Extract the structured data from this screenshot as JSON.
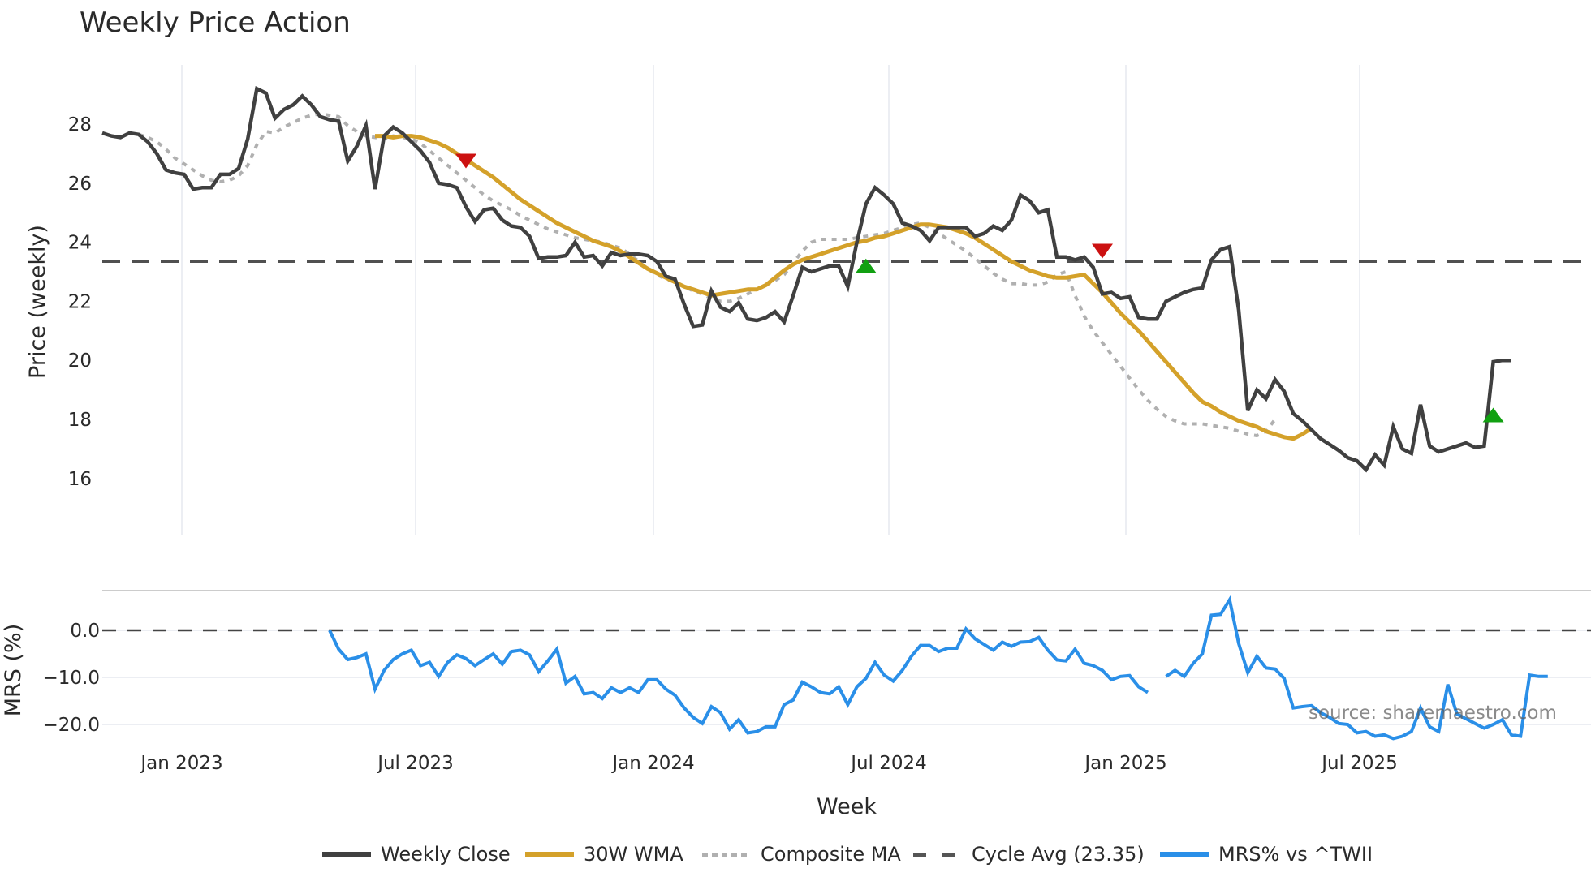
{
  "title": "Weekly Price Action",
  "source_text": "source: sharemaestro.com",
  "legend": [
    {
      "label": "Weekly Close",
      "color": "#404040",
      "style": "solid"
    },
    {
      "label": "30W WMA",
      "color": "#d4a12a",
      "style": "solid"
    },
    {
      "label": "Composite MA",
      "color": "#b0b0b0",
      "style": "dotted"
    },
    {
      "label": "Cycle Avg (23.35)",
      "color": "#555555",
      "style": "dashed"
    },
    {
      "label": "MRS% vs ^TWII",
      "color": "#2a8fe8",
      "style": "solid"
    }
  ],
  "chart_data": [
    {
      "type": "line",
      "title": "Weekly Price Action",
      "xlabel": "Week",
      "ylabel": "Price (weekly)",
      "ylim": [
        15.8,
        29.6
      ],
      "yticks": [
        16,
        18,
        20,
        22,
        24,
        26,
        28
      ],
      "xticks": [
        "Jan 2023",
        "Jul 2023",
        "Jan 2024",
        "Jul 2024",
        "Jan 2025",
        "Jul 2025"
      ],
      "grid": "vertical",
      "legend_position": "bottom",
      "cycle_avg": 23.35,
      "series": [
        {
          "name": "Weekly Close",
          "color": "#404040",
          "values": [
            27.7,
            27.6,
            27.55,
            27.7,
            27.65,
            27.4,
            27.0,
            26.45,
            26.35,
            26.3,
            25.8,
            25.85,
            25.85,
            26.3,
            26.3,
            26.5,
            27.5,
            29.2,
            29.05,
            28.2,
            28.5,
            28.65,
            28.95,
            28.65,
            28.25,
            28.15,
            28.1,
            26.75,
            27.25,
            27.95,
            25.8,
            27.6,
            27.9,
            27.7,
            27.4,
            27.1,
            26.7,
            26.0,
            25.95,
            25.85,
            25.2,
            24.7,
            25.1,
            25.15,
            24.75,
            24.55,
            24.5,
            24.2,
            23.45,
            23.5,
            23.5,
            23.55,
            24.0,
            23.5,
            23.55,
            23.2,
            23.65,
            23.55,
            23.6,
            23.6,
            23.55,
            23.35,
            22.85,
            22.75,
            21.9,
            21.15,
            21.2,
            22.35,
            21.8,
            21.65,
            21.95,
            21.4,
            21.35,
            21.45,
            21.65,
            21.3,
            22.2,
            23.15,
            23.0,
            23.1,
            23.2,
            23.2,
            22.5,
            24.0,
            25.3,
            25.85,
            25.6,
            25.3,
            24.65,
            24.55,
            24.4,
            24.05,
            24.5,
            24.5,
            24.5,
            24.5,
            24.2,
            24.3,
            24.55,
            24.4,
            24.75,
            25.6,
            25.4,
            25.0,
            25.1,
            23.5,
            23.5,
            23.4,
            23.5,
            23.15,
            22.25,
            22.3,
            22.1,
            22.15,
            21.45,
            21.4,
            21.4,
            22.0,
            22.15,
            22.3,
            22.4,
            22.45,
            23.4,
            23.75,
            23.85,
            21.7,
            18.3,
            19.0,
            18.7,
            19.35,
            18.95,
            18.2,
            17.95,
            17.65,
            17.35,
            17.15,
            16.95,
            16.7,
            16.6,
            16.3,
            16.8,
            16.45,
            17.75,
            17.0,
            16.85,
            18.5,
            17.1,
            16.9,
            17.0,
            17.1,
            17.2,
            17.05,
            17.1,
            19.95,
            20.0,
            20.0
          ]
        },
        {
          "name": "30W WMA",
          "color": "#d4a12a",
          "start_index": 30,
          "values": [
            27.6,
            27.6,
            27.55,
            27.6,
            27.6,
            27.55,
            27.45,
            27.35,
            27.2,
            27.0,
            26.8,
            26.6,
            26.4,
            26.2,
            25.95,
            25.7,
            25.45,
            25.25,
            25.05,
            24.85,
            24.65,
            24.5,
            24.35,
            24.2,
            24.05,
            23.95,
            23.85,
            23.7,
            23.5,
            23.3,
            23.1,
            22.95,
            22.8,
            22.65,
            22.5,
            22.4,
            22.3,
            22.2,
            22.25,
            22.3,
            22.35,
            22.4,
            22.4,
            22.55,
            22.8,
            23.05,
            23.25,
            23.4,
            23.5,
            23.6,
            23.7,
            23.8,
            23.9,
            24.0,
            24.05,
            24.15,
            24.2,
            24.3,
            24.4,
            24.5,
            24.6,
            24.6,
            24.55,
            24.5,
            24.4,
            24.3,
            24.15,
            23.95,
            23.75,
            23.55,
            23.35,
            23.2,
            23.05,
            22.95,
            22.85,
            22.8,
            22.8,
            22.85,
            22.9,
            22.6,
            22.3,
            21.95,
            21.6,
            21.3,
            21.0,
            20.65,
            20.3,
            19.95,
            19.6,
            19.25,
            18.9,
            18.6,
            18.45,
            18.25,
            18.1,
            17.95,
            17.85,
            17.75,
            17.6,
            17.5,
            17.4,
            17.35,
            17.5,
            17.7
          ]
        },
        {
          "name": "Composite MA",
          "color": "#b0b0b0",
          "start_index": 4,
          "values": [
            27.65,
            27.55,
            27.4,
            27.15,
            26.85,
            26.65,
            26.45,
            26.25,
            26.1,
            26.05,
            26.1,
            26.25,
            26.6,
            27.3,
            27.75,
            27.7,
            27.9,
            28.05,
            28.2,
            28.3,
            28.35,
            28.3,
            28.25,
            27.95,
            27.75,
            27.6,
            27.55,
            27.5,
            27.6,
            27.55,
            27.5,
            27.35,
            27.1,
            26.85,
            26.6,
            26.35,
            26.1,
            25.85,
            25.6,
            25.4,
            25.25,
            25.1,
            24.9,
            24.75,
            24.6,
            24.45,
            24.35,
            24.25,
            24.15,
            24.1,
            24.05,
            24.0,
            23.9,
            23.8,
            23.6,
            23.35,
            23.1,
            22.9,
            22.75,
            22.65,
            22.5,
            22.35,
            22.25,
            22.1,
            22.0,
            22.0,
            22.1,
            22.25,
            22.4,
            22.55,
            22.7,
            22.9,
            23.3,
            23.7,
            24.0,
            24.1,
            24.1,
            24.1,
            24.1,
            24.15,
            24.2,
            24.25,
            24.3,
            24.4,
            24.5,
            24.6,
            24.65,
            24.5,
            24.3,
            24.1,
            23.9,
            23.7,
            23.45,
            23.2,
            22.95,
            22.75,
            22.6,
            22.6,
            22.55,
            22.55,
            22.65,
            22.9,
            23.0,
            22.2,
            21.5,
            21.0,
            20.6,
            20.2,
            19.8,
            19.4,
            19.0,
            18.65,
            18.35,
            18.1,
            17.95,
            17.85,
            17.85,
            17.85,
            17.8,
            17.75,
            17.7,
            17.6,
            17.5,
            17.45,
            17.6,
            18.0
          ]
        },
        {
          "name": "Cycle Avg (23.35)",
          "color": "#555555",
          "constant": 23.35
        }
      ],
      "markers": [
        {
          "type": "sell",
          "shape": "triangle-down",
          "color": "#cc1111",
          "index": 40,
          "value": 26.75
        },
        {
          "type": "buy",
          "shape": "triangle-up",
          "color": "#11a011",
          "index": 84,
          "value": 23.2
        },
        {
          "type": "sell",
          "shape": "triangle-down",
          "color": "#cc1111",
          "index": 110,
          "value": 23.7
        },
        {
          "type": "buy",
          "shape": "triangle-up",
          "color": "#11a011",
          "index": 153,
          "value": 18.15
        }
      ]
    },
    {
      "type": "line",
      "title": "",
      "xlabel": "Week",
      "ylabel": "MRS (%)",
      "ylim": [
        -23.5,
        8.5
      ],
      "yticks": [
        "0.0",
        "-10.0",
        "-20.0"
      ],
      "ytick_values": [
        0,
        -10,
        -20
      ],
      "zero_line": 0,
      "series": [
        {
          "name": "MRS% vs ^TWII",
          "color": "#2a8fe8",
          "start_index": 25,
          "values": [
            0.0,
            -4.0,
            -6.2,
            -5.8,
            -5.0,
            -12.5,
            -8.5,
            -6.2,
            -5.0,
            -4.2,
            -7.5,
            -6.8,
            -9.8,
            -6.8,
            -5.2,
            -6.0,
            -7.5,
            -6.2,
            -5.0,
            -7.2,
            -4.5,
            -4.2,
            -5.2,
            -8.8,
            -6.5,
            -4.0,
            -11.2,
            -9.8,
            -13.5,
            -13.2,
            -14.5,
            -12.2,
            -13.2,
            -12.2,
            -13.2,
            -10.5,
            -10.5,
            -12.5,
            -13.8,
            -16.5,
            -18.5,
            -19.8,
            -16.2,
            -17.5,
            -21.0,
            -19.0,
            -21.8,
            -21.5,
            -20.5,
            -20.5,
            -15.8,
            -14.8,
            -11.0,
            -12.0,
            -13.2,
            -13.5,
            -12.0,
            -15.8,
            -12.0,
            -10.2,
            -6.8,
            -9.5,
            -10.8,
            -8.5,
            -5.5,
            -3.2,
            -3.2,
            -4.5,
            -3.8,
            -3.8,
            0.3,
            -1.8,
            -3.0,
            -4.2,
            -2.5,
            -3.4,
            -2.5,
            -2.4,
            -1.5,
            -4.2,
            -6.3,
            -6.5,
            -4.0,
            -7.0,
            -7.5,
            -8.5,
            -10.5,
            -9.8,
            -9.6,
            -12.0,
            -13.2,
            null,
            -9.8,
            -8.5,
            -9.8,
            -7.0,
            -5.0,
            3.2,
            3.4,
            6.5,
            -2.8,
            -9.0,
            -5.5,
            -8.0,
            -8.2,
            -10.2,
            -16.5,
            -16.2,
            -16.0,
            -17.5,
            -18.5,
            -19.8,
            -20.0,
            -21.8,
            -21.5,
            -22.5,
            -22.2,
            -23.0,
            -22.5,
            -21.5,
            -16.5,
            -20.5,
            -21.5,
            -11.5,
            -17.8,
            -18.8,
            -19.8,
            -20.8,
            -20.0,
            -19.0,
            -22.2,
            -22.5,
            -9.5,
            -9.8,
            -9.8
          ]
        }
      ]
    }
  ]
}
